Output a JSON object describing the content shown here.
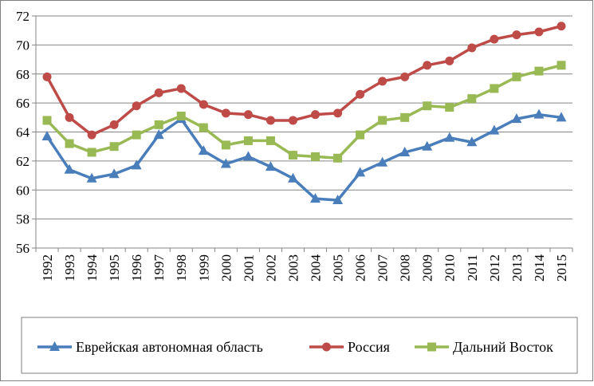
{
  "chart_data": {
    "type": "line",
    "title": "",
    "xlabel": "",
    "ylabel": "",
    "ylim": [
      56,
      72
    ],
    "yticks": [
      56,
      58,
      60,
      62,
      64,
      66,
      68,
      70,
      72
    ],
    "grid": "horizontal",
    "legend_position": "bottom",
    "x": [
      "1992",
      "1993",
      "1994",
      "1995",
      "1996",
      "1997",
      "1998",
      "1999",
      "2000",
      "2001",
      "2002",
      "2003",
      "2004",
      "2005",
      "2006",
      "2007",
      "2008",
      "2009",
      "2010",
      "2011",
      "2012",
      "2013",
      "2014",
      "2015"
    ],
    "series": [
      {
        "name": "Еврейская автономная область",
        "color": "#4a7ebb",
        "marker": "triangle",
        "values": [
          63.7,
          61.4,
          60.8,
          61.1,
          61.7,
          63.8,
          64.9,
          62.7,
          61.8,
          62.3,
          61.6,
          60.8,
          59.4,
          59.3,
          61.2,
          61.9,
          62.6,
          63.0,
          63.6,
          63.3,
          64.1,
          64.9,
          65.2,
          65.0
        ]
      },
      {
        "name": "Россия",
        "color": "#be4b48",
        "marker": "circle",
        "values": [
          67.8,
          65.0,
          63.8,
          64.5,
          65.8,
          66.7,
          67.0,
          65.9,
          65.3,
          65.2,
          64.8,
          64.8,
          65.2,
          65.3,
          66.6,
          67.5,
          67.8,
          68.6,
          68.9,
          69.8,
          70.4,
          70.7,
          70.9,
          71.3
        ]
      },
      {
        "name": "Дальний Восток",
        "color": "#98b954",
        "marker": "square",
        "values": [
          64.8,
          63.2,
          62.6,
          63.0,
          63.8,
          64.5,
          65.1,
          64.3,
          63.1,
          63.4,
          63.4,
          62.4,
          62.3,
          62.2,
          63.8,
          64.8,
          65.0,
          65.8,
          65.7,
          66.3,
          67.0,
          67.8,
          68.2,
          68.6
        ]
      }
    ]
  }
}
